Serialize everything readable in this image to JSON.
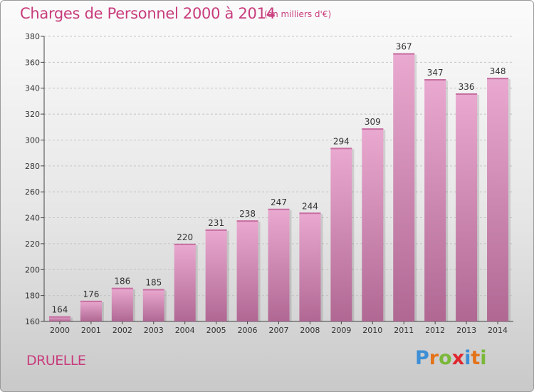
{
  "title": "Charges de Personnel 2000 à 2014",
  "subtitle": "(en milliers d'€)",
  "commune": "DRUELLE",
  "logo": {
    "letters": [
      "P",
      "r",
      "o",
      "x",
      "i",
      "t",
      "i"
    ],
    "colors": [
      "#3d8fd6",
      "#e4731a",
      "#7bb83a",
      "#e0262d",
      "#3d8fd6",
      "#e4731a",
      "#7bb83a"
    ]
  },
  "colors": {
    "accent": "#c83c7c",
    "bar_top": "#eaa9d0",
    "bar_bottom": "#b06893"
  },
  "chart_data": {
    "type": "bar",
    "categories": [
      "2000",
      "2001",
      "2002",
      "2003",
      "2004",
      "2005",
      "2006",
      "2007",
      "2008",
      "2009",
      "2010",
      "2011",
      "2012",
      "2013",
      "2014"
    ],
    "values": [
      164,
      176,
      186,
      185,
      220,
      231,
      238,
      247,
      244,
      294,
      309,
      367,
      347,
      336,
      348
    ],
    "ylim": [
      160,
      380
    ],
    "yticks": [
      160,
      180,
      200,
      220,
      240,
      260,
      280,
      300,
      320,
      340,
      360,
      380
    ],
    "grid": true,
    "data_labels": true
  }
}
